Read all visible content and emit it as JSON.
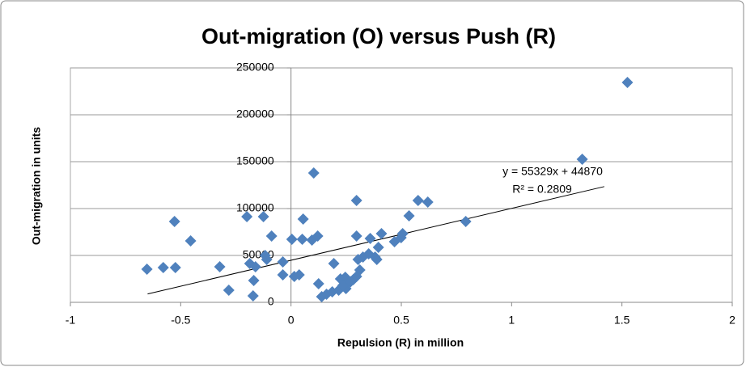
{
  "chart_data": {
    "type": "scatter",
    "title": "Out-migration (O) versus Push (R)",
    "x_label": "Repulsion (R) in million",
    "y_label": "Out-migration in units",
    "xlim": [
      -1,
      2
    ],
    "xticks": [
      -1,
      -0.5,
      0,
      0.5,
      1,
      1.5,
      2
    ],
    "ylim": [
      0,
      250000
    ],
    "yticks": [
      0,
      50000,
      100000,
      150000,
      200000,
      250000
    ],
    "grid": true,
    "series": [
      {
        "color": "#4f81bd",
        "x": [
          1.525,
          1.32,
          0.103,
          0.297,
          0.576,
          0.62,
          0.535,
          0.792,
          -0.528,
          -0.2,
          -0.125,
          0.055,
          -0.455,
          -0.088,
          0.004,
          0.051,
          0.095,
          0.121,
          0.297,
          0.359,
          0.41,
          0.506,
          0.499,
          0.469,
          -0.653,
          -0.579,
          -0.524,
          -0.323,
          -0.187,
          -0.161,
          -0.11,
          -0.117,
          -0.037,
          -0.169,
          -0.282,
          -0.172,
          -0.037,
          0.037,
          0.015,
          0.194,
          0.125,
          0.139,
          0.161,
          0.187,
          0.216,
          0.224,
          0.249,
          0.26,
          0.282,
          0.297,
          0.312,
          0.304,
          0.326,
          0.352,
          0.381,
          0.389,
          0.396,
          0.246,
          0.235,
          0.27
        ],
        "values": [
          234500,
          152600,
          137900,
          108600,
          108600,
          106900,
          92200,
          86200,
          86200,
          91400,
          91400,
          88800,
          65500,
          70700,
          67200,
          67200,
          66400,
          70700,
          70700,
          68100,
          73300,
          73300,
          69000,
          64700,
          35300,
          37100,
          37100,
          37900,
          41400,
          37900,
          45700,
          50000,
          43100,
          23300,
          12900,
          6900,
          29300,
          29300,
          27600,
          41400,
          19800,
          6000,
          8600,
          11200,
          12900,
          25000,
          14700,
          20700,
          24100,
          27600,
          34500,
          45700,
          48300,
          51700,
          48300,
          45700,
          58600,
          26700,
          18000,
          22000
        ]
      }
    ],
    "trendline": {
      "equation": "y = 55329x + 44870",
      "r_squared": "R² = 0.2809",
      "slope": 55329,
      "intercept": 44870,
      "x_start": -0.65,
      "x_end": 1.42,
      "color": "#000000"
    }
  }
}
